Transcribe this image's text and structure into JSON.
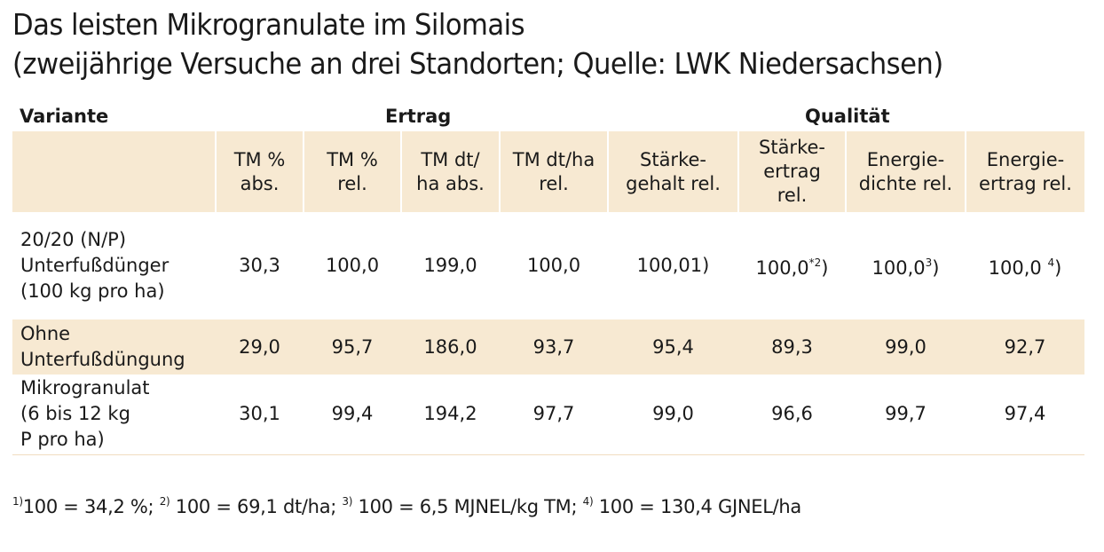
{
  "title": {
    "line1": "Das leisten Mikrogranulate im Silomais",
    "line2": "(zweijährige Versuche an drei Standorten; Quelle: LWK Niedersachsen)"
  },
  "groups": {
    "variante": "Variante",
    "ertrag": "Ertrag",
    "qualitaet": "Qualität"
  },
  "columns": [
    "",
    "TM %\nabs.",
    "TM %\nrel.",
    "TM dt/\nha abs.",
    "TM dt/ha\nrel.",
    "Stärke-\ngehalt rel.",
    "Stärke-\nertrag\nrel.",
    "Energie-\ndichte rel.",
    "Energie-\nertrag rel."
  ],
  "rows": [
    {
      "label": "20/20 (N/P)\nUnterfußdünger\n(100 kg pro ha)",
      "values": [
        "30,3",
        "100,0",
        "199,0",
        "100,0",
        "100,01)",
        "100,0",
        "100,0",
        "100,0 "
      ],
      "sup": [
        "",
        "",
        "",
        "",
        "",
        "*2",
        "3",
        "4"
      ],
      "post": [
        "",
        "",
        "",
        "",
        "",
        ")",
        ")",
        ")"
      ]
    },
    {
      "label": "Ohne\nUnterfußdüngung",
      "values": [
        "29,0",
        "95,7",
        "186,0",
        "93,7",
        "95,4",
        "89,3",
        "99,0",
        "92,7"
      ],
      "sup": [
        "",
        "",
        "",
        "",
        "",
        "",
        "",
        ""
      ],
      "post": [
        "",
        "",
        "",
        "",
        "",
        "",
        "",
        ""
      ]
    },
    {
      "label": "Mikrogranulat\n(6 bis 12 kg\nP pro ha)",
      "values": [
        "30,1",
        "99,4",
        "194,2",
        "97,7",
        "99,0",
        "96,6",
        "99,7",
        "97,4"
      ],
      "sup": [
        "",
        "",
        "",
        "",
        "",
        "",
        "",
        ""
      ],
      "post": [
        "",
        "",
        "",
        "",
        "",
        "",
        "",
        ""
      ]
    }
  ],
  "footnote": {
    "n1": "1)",
    "t1": "100 = 34,2 %; ",
    "n2": "2)",
    "t2": " 100 = 69,1 dt/ha; ",
    "n3": "3)",
    "t3": " 100 = 6,5 MJNEL/kg TM; ",
    "n4": "4)",
    "t4": " 100 = 130,4 GJNEL/ha"
  }
}
